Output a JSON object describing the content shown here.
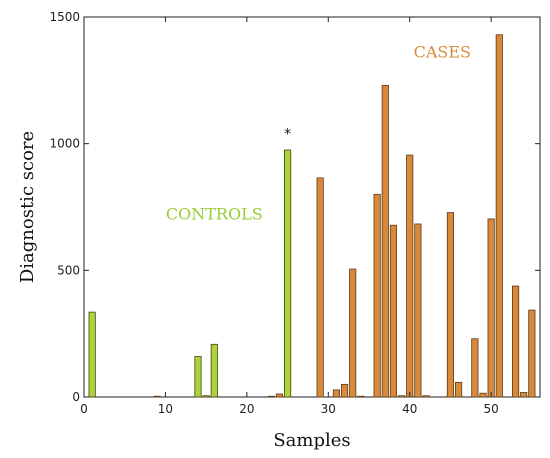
{
  "chart_data": {
    "type": "bar",
    "title": "",
    "xlabel": "Samples",
    "ylabel": "Diagnostic score",
    "xlim": [
      0,
      56
    ],
    "ylim": [
      0,
      1500
    ],
    "xticks": [
      0,
      10,
      20,
      30,
      40,
      50
    ],
    "yticks": [
      0,
      500,
      1000,
      1500
    ],
    "grid": false,
    "annotations": [
      {
        "text": "CONTROLS",
        "x": 16,
        "y": 700,
        "color": "#9ACD32"
      },
      {
        "text": "CASES",
        "x": 44,
        "y": 1340,
        "color": "#D98A3A"
      },
      {
        "text": "*",
        "x": 25,
        "y": 1020,
        "color": "#111111"
      }
    ],
    "series": [
      {
        "group": "controls",
        "color": "#A6D63A",
        "x": [
          1,
          9,
          14,
          15,
          16,
          23,
          25
        ],
        "values": [
          335,
          3,
          160,
          5,
          208,
          3,
          975
        ]
      },
      {
        "group": "cases",
        "color": "#D88A3A",
        "x": [
          24,
          29,
          31,
          32,
          33,
          34,
          36,
          37,
          38,
          39,
          40,
          41,
          42,
          45,
          46,
          48,
          49,
          50,
          51,
          53,
          54,
          55
        ],
        "values": [
          12,
          865,
          28,
          50,
          505,
          3,
          800,
          1230,
          678,
          5,
          955,
          683,
          5,
          728,
          58,
          230,
          15,
          703,
          1430,
          438,
          18,
          343
        ]
      }
    ]
  }
}
